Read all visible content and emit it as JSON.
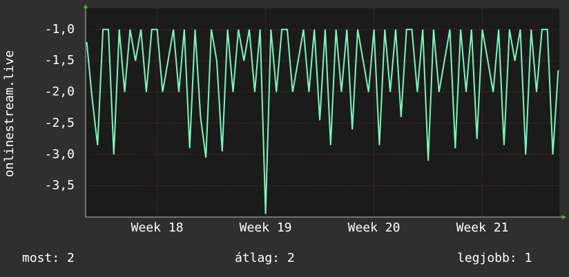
{
  "chart_data": {
    "type": "line",
    "ylabel": "onlinestream.live",
    "xlim": [
      17.34,
      21.71
    ],
    "ylim": [
      -4.0,
      -0.66
    ],
    "xticks": [
      {
        "value": 18,
        "label": "Week 18"
      },
      {
        "value": 19,
        "label": "Week 19"
      },
      {
        "value": 20,
        "label": "Week 20"
      },
      {
        "value": 21,
        "label": "Week 21"
      }
    ],
    "yticks": [
      {
        "value": -1,
        "label": "-1,0"
      },
      {
        "value": -1.5,
        "label": "-1,5"
      },
      {
        "value": -2,
        "label": "-2,0"
      },
      {
        "value": -2.5,
        "label": "-2,5"
      },
      {
        "value": -3,
        "label": "-3,0"
      },
      {
        "value": -3.5,
        "label": "-3,5"
      }
    ],
    "grid": true,
    "x": [
      17.35,
      17.4,
      17.45,
      17.5,
      17.55,
      17.6,
      17.65,
      17.7,
      17.75,
      17.8,
      17.85,
      17.9,
      17.95,
      18.0,
      18.05,
      18.1,
      18.15,
      18.2,
      18.25,
      18.3,
      18.35,
      18.4,
      18.45,
      18.5,
      18.55,
      18.6,
      18.65,
      18.7,
      18.75,
      18.8,
      18.85,
      18.9,
      18.95,
      19.0,
      19.05,
      19.1,
      19.15,
      19.2,
      19.25,
      19.3,
      19.35,
      19.4,
      19.45,
      19.5,
      19.55,
      19.6,
      19.65,
      19.7,
      19.75,
      19.8,
      19.85,
      19.9,
      19.95,
      20.0,
      20.05,
      20.1,
      20.15,
      20.2,
      20.25,
      20.3,
      20.35,
      20.4,
      20.45,
      20.5,
      20.55,
      20.6,
      20.65,
      20.7,
      20.75,
      20.8,
      20.85,
      20.9,
      20.95,
      21.0,
      21.05,
      21.1,
      21.15,
      21.2,
      21.25,
      21.3,
      21.35,
      21.4,
      21.45,
      21.5,
      21.55,
      21.6,
      21.65,
      21.7
    ],
    "series": [
      {
        "name": "onlinestream.live",
        "color": "#7ff5bd",
        "values": [
          -1.2,
          -2.1,
          -2.85,
          -1,
          -1,
          -3.0,
          -1,
          -2.0,
          -1,
          -1.5,
          -1,
          -2.0,
          -1,
          -1,
          -2.0,
          -1.5,
          -1,
          -2.0,
          -1,
          -2.9,
          -1,
          -2.4,
          -3.05,
          -1,
          -1.5,
          -2.95,
          -1,
          -2.0,
          -1,
          -1.5,
          -1,
          -2.0,
          -1,
          -3.95,
          -1,
          -2.0,
          -1,
          -1,
          -2.0,
          -1.5,
          -1,
          -2.0,
          -1,
          -2.45,
          -1,
          -2.85,
          -1,
          -2.0,
          -1,
          -2.6,
          -1,
          -1.5,
          -2.0,
          -1,
          -2.85,
          -1,
          -2.0,
          -1,
          -2.4,
          -1,
          -1,
          -2.0,
          -1,
          -3.1,
          -1,
          -2.0,
          -1.5,
          -1,
          -2.9,
          -1,
          -2.0,
          -1,
          -2.75,
          -1,
          -1.5,
          -2.0,
          -1,
          -2.85,
          -1,
          -1.5,
          -1,
          -3.0,
          -1,
          -2.0,
          -1,
          -1,
          -3.0,
          -1.65
        ]
      }
    ],
    "footer": {
      "current": "most: 2",
      "average": "átlag: 2",
      "best": "legjobb: 1"
    }
  }
}
